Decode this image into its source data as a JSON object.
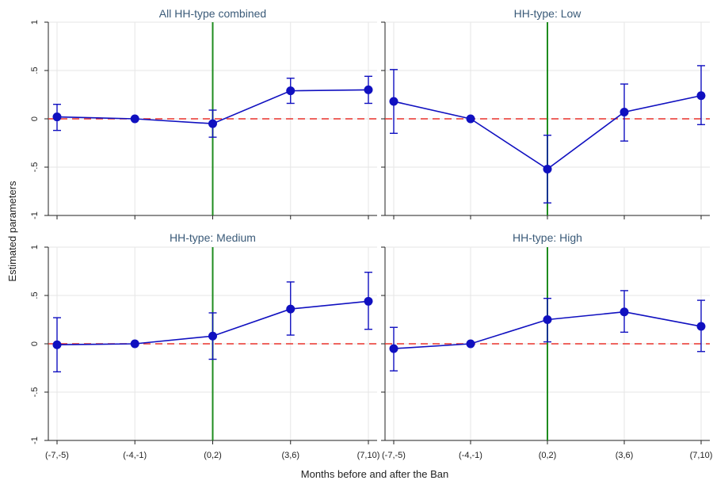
{
  "figure": {
    "ylabel": "Estimated parameters",
    "xlabel": "Months before and after the Ban"
  },
  "chart_data": [
    {
      "type": "line",
      "title": "All HH-type combined",
      "categories": [
        "(-7,-5)",
        "(-4,-1)",
        "(0,2)",
        "(3,6)",
        "(7,10)"
      ],
      "values": [
        0.02,
        0.0,
        -0.05,
        0.29,
        0.3
      ],
      "ci_low": [
        -0.12,
        0.0,
        -0.19,
        0.16,
        0.16
      ],
      "ci_high": [
        0.15,
        0.0,
        0.09,
        0.42,
        0.44
      ],
      "ylim": [
        -1,
        1
      ],
      "yticks": [
        1,
        0.5,
        0,
        -0.5,
        -1
      ],
      "ytick_labels": [
        "1",
        ".5",
        "0",
        "-.5",
        "-1"
      ],
      "reference_line": 0,
      "event_line_category": "(0,2)",
      "colors": {
        "series": "#1010c0",
        "reference": "#e8302a",
        "event": "#1e8c1e",
        "grid": "#e6e6e6"
      }
    },
    {
      "type": "line",
      "title": "HH-type: Low",
      "categories": [
        "(-7,-5)",
        "(-4,-1)",
        "(0,2)",
        "(3,6)",
        "(7,10)"
      ],
      "values": [
        0.18,
        0.0,
        -0.52,
        0.07,
        0.24
      ],
      "ci_low": [
        -0.15,
        0.0,
        -0.87,
        -0.23,
        -0.06
      ],
      "ci_high": [
        0.51,
        0.0,
        -0.17,
        0.36,
        0.55
      ],
      "ylim": [
        -1,
        1
      ],
      "yticks": [
        1,
        0.5,
        0,
        -0.5,
        -1
      ],
      "ytick_labels": [
        "1",
        ".5",
        "0",
        "-.5",
        "-1"
      ],
      "reference_line": 0,
      "event_line_category": "(0,2)",
      "colors": {
        "series": "#1010c0",
        "reference": "#e8302a",
        "event": "#1e8c1e",
        "grid": "#e6e6e6"
      }
    },
    {
      "type": "line",
      "title": "HH-type: Medium",
      "categories": [
        "(-7,-5)",
        "(-4,-1)",
        "(0,2)",
        "(3,6)",
        "(7,10)"
      ],
      "values": [
        -0.01,
        0.0,
        0.08,
        0.36,
        0.44
      ],
      "ci_low": [
        -0.29,
        0.0,
        -0.16,
        0.09,
        0.15
      ],
      "ci_high": [
        0.27,
        0.0,
        0.32,
        0.64,
        0.74
      ],
      "ylim": [
        -1,
        1
      ],
      "yticks": [
        1,
        0.5,
        0,
        -0.5,
        -1
      ],
      "ytick_labels": [
        "1",
        ".5",
        "0",
        "-.5",
        "-1"
      ],
      "reference_line": 0,
      "event_line_category": "(0,2)",
      "colors": {
        "series": "#1010c0",
        "reference": "#e8302a",
        "event": "#1e8c1e",
        "grid": "#e6e6e6"
      }
    },
    {
      "type": "line",
      "title": "HH-type: High",
      "categories": [
        "(-7,-5)",
        "(-4,-1)",
        "(0,2)",
        "(3,6)",
        "(7,10)"
      ],
      "values": [
        -0.05,
        0.0,
        0.25,
        0.33,
        0.18
      ],
      "ci_low": [
        -0.28,
        0.0,
        0.02,
        0.12,
        -0.08
      ],
      "ci_high": [
        0.17,
        0.0,
        0.47,
        0.55,
        0.45
      ],
      "ylim": [
        -1,
        1
      ],
      "yticks": [
        1,
        0.5,
        0,
        -0.5,
        -1
      ],
      "ytick_labels": [
        "1",
        ".5",
        "0",
        "-.5",
        "-1"
      ],
      "reference_line": 0,
      "event_line_category": "(0,2)",
      "colors": {
        "series": "#1010c0",
        "reference": "#e8302a",
        "event": "#1e8c1e",
        "grid": "#e6e6e6"
      }
    }
  ]
}
